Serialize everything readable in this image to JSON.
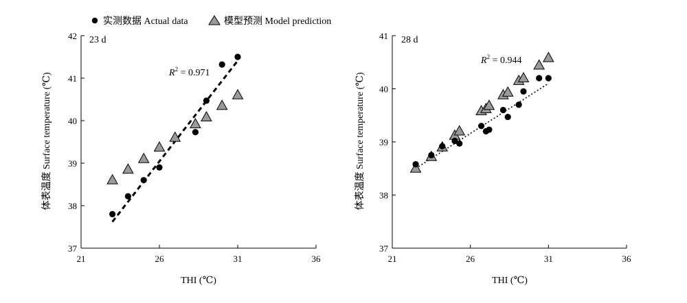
{
  "legend": {
    "actual_label": "实测数据 Actual data",
    "model_label": "模型预测 Model prediction",
    "placement": "top"
  },
  "colors": {
    "actual": "#000000",
    "model_fill": "#9a9a9a",
    "model_stroke": "#000000",
    "axis": "#000000"
  },
  "chart_data": [
    {
      "type": "scatter",
      "panel_label": "23 d",
      "xlabel": "THI (℃)",
      "ylabel": "体表温度 Surface temperature (℃)",
      "xlim": [
        21,
        36
      ],
      "ylim": [
        37,
        42
      ],
      "xticks": [
        "21",
        "26",
        "31",
        "36"
      ],
      "yticks": [
        "37",
        "38",
        "39",
        "40",
        "41",
        "42"
      ],
      "annotation": {
        "r2_value": "0.971"
      },
      "trendline": {
        "x": [
          23,
          31
        ],
        "y": [
          37.62,
          41.41
        ],
        "style": "dashed"
      },
      "series": [
        {
          "name": "实测数据 Actual data",
          "marker": "circle",
          "x": [
            23,
            24,
            25,
            26,
            28.3,
            29,
            30,
            31
          ],
          "y": [
            37.8,
            38.22,
            38.6,
            38.9,
            39.73,
            40.47,
            41.32,
            41.5
          ]
        },
        {
          "name": "模型预测 Model prediction",
          "marker": "triangle",
          "x": [
            23,
            24,
            25,
            26,
            27,
            28.3,
            29,
            30,
            31
          ],
          "y": [
            38.6,
            38.85,
            39.1,
            39.37,
            39.6,
            39.92,
            40.08,
            40.35,
            40.6
          ]
        }
      ]
    },
    {
      "type": "scatter",
      "panel_label": "28 d",
      "xlabel": "THI (℃)",
      "ylabel": "体表温度 Surface temperature (℃)",
      "xlim": [
        21,
        36
      ],
      "ylim": [
        37,
        41
      ],
      "xticks": [
        "21",
        "26",
        "31",
        "36"
      ],
      "yticks": [
        "37",
        "38",
        "39",
        "40",
        "41"
      ],
      "annotation": {
        "r2_value": "0.944"
      },
      "trendline": {
        "x": [
          22.5,
          31
        ],
        "y": [
          38.5,
          40.1
        ],
        "style": "dotted"
      },
      "series": [
        {
          "name": "实测数据 Actual data",
          "marker": "circle",
          "x": [
            22.5,
            23.5,
            24.2,
            25.0,
            25.3,
            26.7,
            27.0,
            27.2,
            28.1,
            28.4,
            29.1,
            29.4,
            30.4,
            31.0
          ],
          "y": [
            38.58,
            38.75,
            38.92,
            39.02,
            38.97,
            39.3,
            39.2,
            39.23,
            39.6,
            39.47,
            39.7,
            39.95,
            40.2,
            40.2
          ]
        },
        {
          "name": "模型预测 Model prediction",
          "marker": "triangle",
          "x": [
            22.5,
            23.5,
            24.2,
            25.0,
            25.3,
            26.7,
            27.0,
            27.2,
            28.1,
            28.4,
            29.1,
            29.4,
            30.4,
            31.0
          ],
          "y": [
            38.5,
            38.72,
            38.9,
            39.12,
            39.2,
            39.58,
            39.62,
            39.68,
            39.88,
            39.93,
            40.15,
            40.2,
            40.44,
            40.58
          ]
        }
      ]
    }
  ]
}
